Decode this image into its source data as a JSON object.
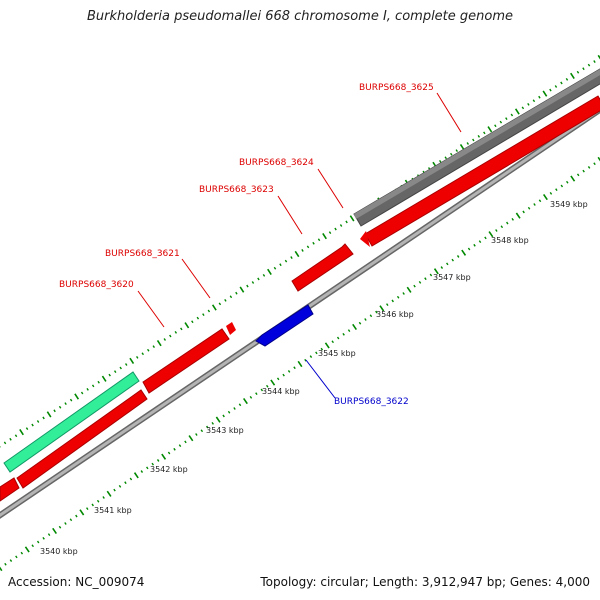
{
  "title": "Burkholderia pseudomallei 668 chromosome I, complete genome",
  "footer": {
    "accession": "Accession: NC_009074",
    "summary": "Topology: circular; Length: 3,912,947 bp; Genes: 4,000"
  },
  "scale_labels": [
    "3540 kbp",
    "3541 kbp",
    "3542 kbp",
    "3543 kbp",
    "3544 kbp",
    "3545 kbp",
    "3546 kbp",
    "3547 kbp",
    "3548 kbp",
    "3549 kbp"
  ],
  "genes": [
    {
      "name": "BURPS668_3620",
      "color": "#dd0000"
    },
    {
      "name": "BURPS668_3621",
      "color": "#dd0000"
    },
    {
      "name": "BURPS668_3622",
      "color": "#0000cc"
    },
    {
      "name": "BURPS668_3623",
      "color": "#dd0000"
    },
    {
      "name": "BURPS668_3624",
      "color": "#dd0000"
    },
    {
      "name": "BURPS668_3625",
      "color": "#dd0000"
    }
  ],
  "colors": {
    "forward_gene": "#ee0000",
    "reverse_gene": "#0000dd",
    "gray_gene": "#666666",
    "teal_gene": "#33ee99",
    "backbone": "#999999",
    "tick": "#008800"
  }
}
